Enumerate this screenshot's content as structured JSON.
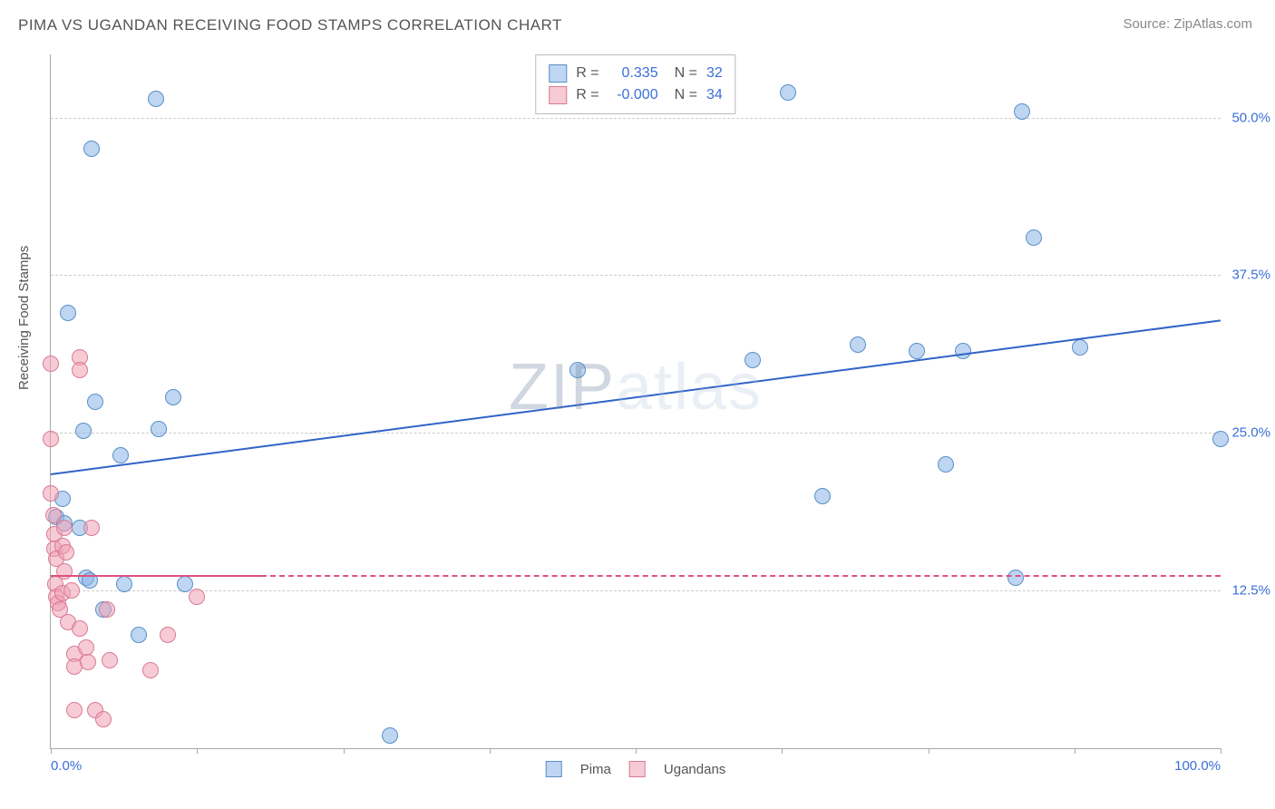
{
  "title": "PIMA VS UGANDAN RECEIVING FOOD STAMPS CORRELATION CHART",
  "source": "Source: ZipAtlas.com",
  "ylabel": "Receiving Food Stamps",
  "watermark": "ZIPatlas",
  "chart": {
    "type": "scatter",
    "xlim": [
      0,
      100
    ],
    "ylim": [
      0,
      55
    ],
    "x_axis_labels": [
      {
        "pos": 0,
        "label": "0.0%"
      },
      {
        "pos": 100,
        "label": "100.0%"
      }
    ],
    "x_ticks": [
      0,
      12.5,
      25,
      37.5,
      50,
      62.5,
      75,
      87.5,
      100
    ],
    "y_gridlines": [
      {
        "y": 12.5,
        "label": "12.5%"
      },
      {
        "y": 25.0,
        "label": "25.0%"
      },
      {
        "y": 37.5,
        "label": "37.5%"
      },
      {
        "y": 50.0,
        "label": "50.0%"
      }
    ],
    "background_color": "#ffffff",
    "grid_color": "#cccccc",
    "axis_color": "#aaaaaa",
    "marker_size": 18,
    "series": [
      {
        "name": "Pima",
        "fill": "rgba(137,180,230,0.55)",
        "stroke": "#5a8fc8",
        "trend_color": "#2f63c8",
        "trend_width": 2.0,
        "trend": {
          "x1": 0,
          "y1": 21.8,
          "x2": 100,
          "y2": 34.0
        },
        "points": [
          {
            "x": 0.5,
            "y": 18.3
          },
          {
            "x": 1.0,
            "y": 19.8
          },
          {
            "x": 1.2,
            "y": 17.8
          },
          {
            "x": 1.5,
            "y": 34.5
          },
          {
            "x": 2.5,
            "y": 17.5
          },
          {
            "x": 2.8,
            "y": 25.2
          },
          {
            "x": 3.0,
            "y": 13.5
          },
          {
            "x": 3.3,
            "y": 13.3
          },
          {
            "x": 3.5,
            "y": 47.5
          },
          {
            "x": 3.8,
            "y": 27.5
          },
          {
            "x": 4.5,
            "y": 11.0
          },
          {
            "x": 6.0,
            "y": 23.2
          },
          {
            "x": 6.3,
            "y": 13.0
          },
          {
            "x": 7.5,
            "y": 9.0
          },
          {
            "x": 9.0,
            "y": 51.5
          },
          {
            "x": 9.2,
            "y": 25.3
          },
          {
            "x": 10.5,
            "y": 27.8
          },
          {
            "x": 11.5,
            "y": 13.0
          },
          {
            "x": 29.0,
            "y": 1.0
          },
          {
            "x": 45.0,
            "y": 30.0
          },
          {
            "x": 60.0,
            "y": 30.8
          },
          {
            "x": 63.0,
            "y": 52.0
          },
          {
            "x": 66.0,
            "y": 20.0
          },
          {
            "x": 69.0,
            "y": 32.0
          },
          {
            "x": 74.0,
            "y": 31.5
          },
          {
            "x": 76.5,
            "y": 22.5
          },
          {
            "x": 78.0,
            "y": 31.5
          },
          {
            "x": 82.5,
            "y": 13.5
          },
          {
            "x": 83.0,
            "y": 50.5
          },
          {
            "x": 84.0,
            "y": 40.5
          },
          {
            "x": 88.0,
            "y": 31.8
          },
          {
            "x": 100.0,
            "y": 24.5
          }
        ]
      },
      {
        "name": "Ugandans",
        "fill": "rgba(240,160,180,0.55)",
        "stroke": "#d87a95",
        "trend_color": "#e05080",
        "trend_width": 2.0,
        "trend": {
          "x1": 0,
          "y1": 13.7,
          "x2": 18,
          "y2": 13.7
        },
        "dash_extension": {
          "x1": 18,
          "y1": 13.7,
          "x2": 100,
          "y2": 13.7
        },
        "points": [
          {
            "x": 0.0,
            "y": 30.5
          },
          {
            "x": 0.0,
            "y": 24.5
          },
          {
            "x": 0.0,
            "y": 20.2
          },
          {
            "x": 0.2,
            "y": 18.5
          },
          {
            "x": 0.3,
            "y": 17.0
          },
          {
            "x": 0.3,
            "y": 15.8
          },
          {
            "x": 0.5,
            "y": 15.0
          },
          {
            "x": 0.4,
            "y": 13.0
          },
          {
            "x": 0.5,
            "y": 12.0
          },
          {
            "x": 0.6,
            "y": 11.5
          },
          {
            "x": 0.8,
            "y": 11.0
          },
          {
            "x": 1.0,
            "y": 16.0
          },
          {
            "x": 1.0,
            "y": 12.3
          },
          {
            "x": 1.2,
            "y": 17.5
          },
          {
            "x": 1.2,
            "y": 14.0
          },
          {
            "x": 1.3,
            "y": 15.5
          },
          {
            "x": 1.5,
            "y": 10.0
          },
          {
            "x": 1.8,
            "y": 12.5
          },
          {
            "x": 2.0,
            "y": 7.5
          },
          {
            "x": 2.0,
            "y": 6.5
          },
          {
            "x": 2.0,
            "y": 3.0
          },
          {
            "x": 2.5,
            "y": 31.0
          },
          {
            "x": 2.5,
            "y": 9.5
          },
          {
            "x": 2.5,
            "y": 30.0
          },
          {
            "x": 3.0,
            "y": 8.0
          },
          {
            "x": 3.2,
            "y": 6.8
          },
          {
            "x": 3.5,
            "y": 17.5
          },
          {
            "x": 3.8,
            "y": 3.0
          },
          {
            "x": 4.5,
            "y": 2.3
          },
          {
            "x": 4.8,
            "y": 11.0
          },
          {
            "x": 5.0,
            "y": 7.0
          },
          {
            "x": 10.0,
            "y": 9.0
          },
          {
            "x": 12.5,
            "y": 12.0
          },
          {
            "x": 8.5,
            "y": 6.2
          }
        ]
      }
    ],
    "legend_top": {
      "rows": [
        {
          "swatch": "blue",
          "r_label": "R =",
          "r_val": "0.335",
          "n_label": "N =",
          "n_val": "32"
        },
        {
          "swatch": "pink",
          "r_label": "R =",
          "r_val": "-0.000",
          "n_label": "N =",
          "n_val": "34"
        }
      ]
    },
    "legend_bottom": [
      {
        "swatch": "blue",
        "label": "Pima"
      },
      {
        "swatch": "pink",
        "label": "Ugandans"
      }
    ]
  }
}
